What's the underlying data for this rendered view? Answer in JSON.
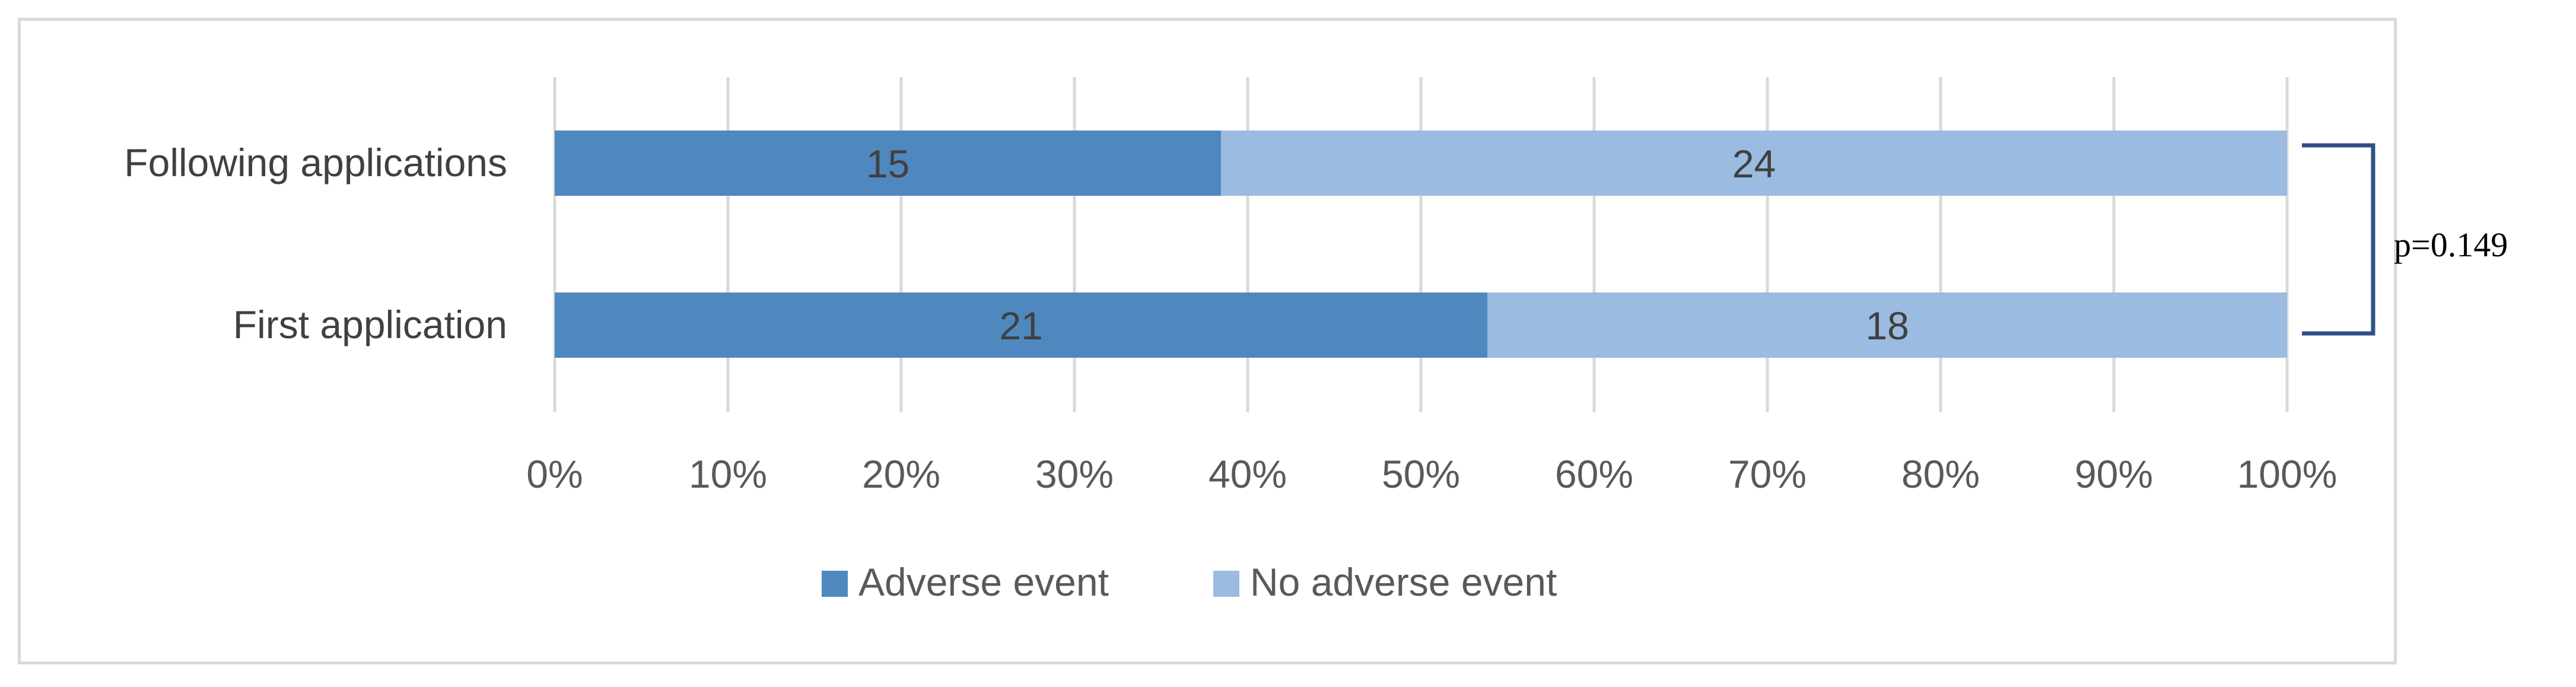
{
  "chart_data": {
    "type": "bar",
    "orientation": "horizontal",
    "stacked": "percent",
    "categories": [
      "Following applications",
      "First application"
    ],
    "series": [
      {
        "name": "Adverse event",
        "values": [
          15,
          21
        ],
        "color": "#4f88bf"
      },
      {
        "name": "No adverse event",
        "values": [
          24,
          18
        ],
        "color": "#9bbbe0"
      }
    ],
    "x_ticks": [
      "0%",
      "10%",
      "20%",
      "30%",
      "40%",
      "50%",
      "60%",
      "70%",
      "80%",
      "90%",
      "100%"
    ],
    "xlim": [
      0,
      100
    ],
    "grid": true,
    "legend_position": "bottom",
    "annotation": "p=0.149"
  }
}
